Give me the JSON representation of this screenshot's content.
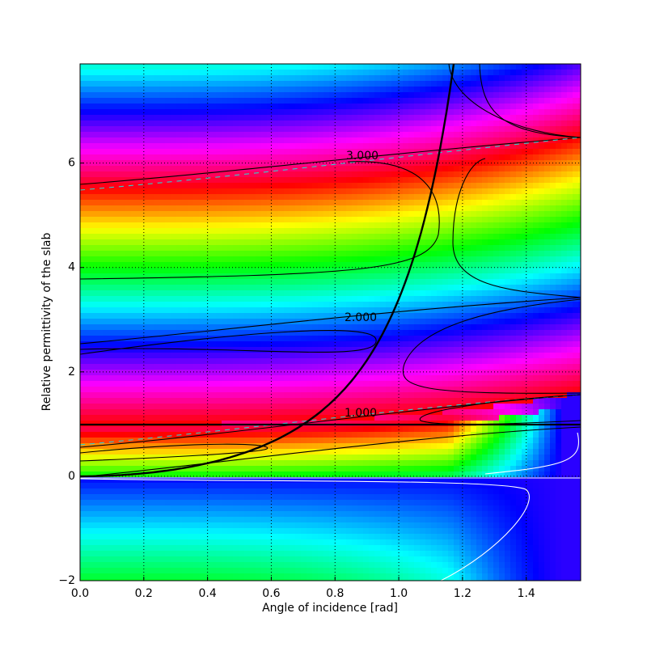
{
  "chart_data": {
    "type": "contourf",
    "xlabel": "Angle of incidence [rad]",
    "ylabel": "Relative permittivity of the slab",
    "xlim": [
      0,
      1.5708
    ],
    "ylim": [
      -2,
      7.9
    ],
    "xticks": [
      {
        "value": 0,
        "label": "0.0"
      },
      {
        "value": 0.2,
        "label": "0.2"
      },
      {
        "value": 0.4,
        "label": "0.4"
      },
      {
        "value": 0.6,
        "label": "0.6"
      },
      {
        "value": 0.8,
        "label": "0.8"
      },
      {
        "value": 1,
        "label": "1.0"
      },
      {
        "value": 1.2,
        "label": "1.2"
      },
      {
        "value": 1.4,
        "label": "1.4"
      }
    ],
    "yticks": [
      {
        "value": -2,
        "label": "−2"
      },
      0,
      2,
      4,
      6
    ],
    "grid": true,
    "contour_labels": [
      "3.000",
      "2.000",
      "1.000"
    ]
  }
}
